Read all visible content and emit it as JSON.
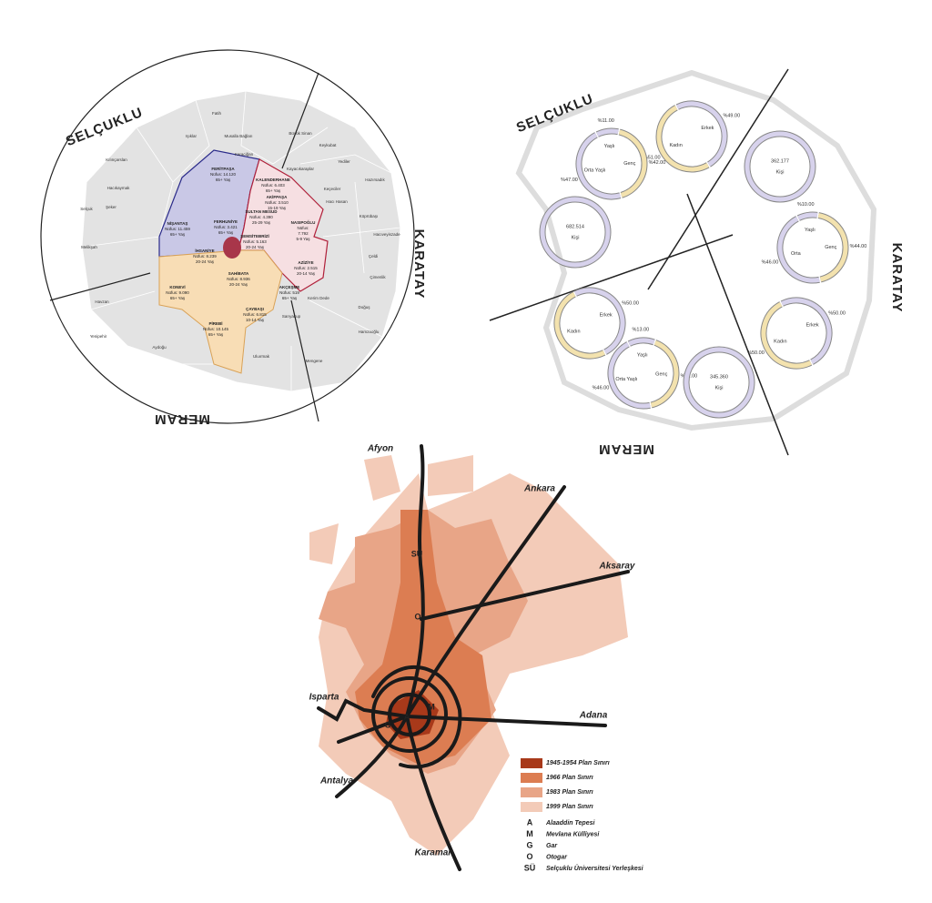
{
  "map_districts": {
    "regions": [
      "SELÇUKLU",
      "KARATAY",
      "MERAM"
    ],
    "neighborhoods": [
      "Fatih",
      "Işıklar",
      "Musalla Bağları",
      "Karaciğan",
      "Büyük Sinan",
      "Keykubat",
      "Yediler",
      "Kılınçarslan",
      "Kayacıkaraplar",
      "Hacıkaymak",
      "Keçeciler",
      "Hazırsadık",
      "Hacı Hasan",
      "Selçuk",
      "Şeker",
      "Köprübaşı",
      "Hacıveyiszade",
      "Melikşah",
      "Çeldi",
      "Çimenlik",
      "Havzan",
      "Kerim Dede",
      "Doğuş",
      "Sarıyakup",
      "Hamzaoğlu",
      "Yenipehir",
      "Aydoğu",
      "Uluırmak",
      "Mengene"
    ],
    "info_labels": [
      {
        "name": "FERİTPAŞA",
        "lines": [
          "Nüfus: 14.120",
          "65+ Yaş"
        ]
      },
      {
        "name": "KALENDERHANE",
        "lines": [
          "Nüfus: 6.403",
          "65+ Yaş"
        ]
      },
      {
        "name": "AKİFPAŞA",
        "lines": [
          "Nüfus: 3.510",
          "15-19 Yaş"
        ]
      },
      {
        "name": "SULTAN MESUD",
        "lines": [
          "Nüfus: 4.390",
          "25-29 Yaş"
        ]
      },
      {
        "name": "NASIPOĞLU",
        "lines": [
          "Nüfus:",
          "7.792",
          "5-9 Yaş"
        ]
      },
      {
        "name": "NİŞANTAŞ",
        "lines": [
          "Nüfus: 11.459",
          "65+ Yaş"
        ]
      },
      {
        "name": "FERHUNİYE",
        "lines": [
          "Nüfus: 3.421",
          "65+ Yaş"
        ]
      },
      {
        "name": "ŞEMSİTEBRİZİ",
        "lines": [
          "Nüfus: 5.163",
          "20-24 Yaş"
        ]
      },
      {
        "name": "İHSANİYE",
        "lines": [
          "Nüfus: 8.239",
          "20-24 Yaş"
        ]
      },
      {
        "name": "AZİZİYE",
        "lines": [
          "Nüfus: 2.515",
          "20-14 Yaş"
        ]
      },
      {
        "name": "SAHİBATA",
        "lines": [
          "Nüfus: 8.936",
          "20-24 Yaş"
        ]
      },
      {
        "name": "KONEVİ",
        "lines": [
          "Nüfus: 9.090",
          "65+ Yaş"
        ]
      },
      {
        "name": "AKÇEŞME",
        "lines": [
          "Nüfus: 519",
          "65+ Yaş"
        ]
      },
      {
        "name": "ÇAYBAŞI",
        "lines": [
          "Nüfus: 6.815",
          "10-14 Yaş"
        ]
      },
      {
        "name": "PİREBİ",
        "lines": [
          "Nüfus: 10.145",
          "65+ Yaş"
        ]
      }
    ]
  },
  "demographics": {
    "regions": [
      "SELÇUKLU",
      "KARATAY",
      "MERAM"
    ],
    "donuts": [
      {
        "segments": [
          {
            "name": "Erkek",
            "value": 49,
            "label": "%49.00"
          },
          {
            "name": "Kadın",
            "value": 51,
            "label": "%51.00"
          }
        ]
      },
      {
        "segments": [
          {
            "name": "Yaşlı",
            "value": 11,
            "label": "%11.00"
          },
          {
            "name": "Genç",
            "value": 42,
            "label": "%42.00"
          },
          {
            "name": "Orta Yaşlı",
            "value": 47,
            "label": "%47.00"
          }
        ]
      },
      {
        "total": "362.177",
        "unit": "Kişi"
      },
      {
        "total": "682.514",
        "unit": "Kişi"
      },
      {
        "segments": [
          {
            "name": "Yaşlı",
            "value": 10,
            "label": "%10.00"
          },
          {
            "name": "Genç",
            "value": 44,
            "label": "%44.00"
          },
          {
            "name": "Orta",
            "value": 46,
            "label": "%46.00"
          }
        ]
      },
      {
        "segments": [
          {
            "name": "Erkek",
            "value": 50,
            "label": "%50.00"
          },
          {
            "name": "Kadın",
            "value": 50
          }
        ]
      },
      {
        "segments": [
          {
            "name": "Yaşlı",
            "value": 13,
            "label": "%13.00"
          },
          {
            "name": "Genç",
            "value": 41,
            "label": "%41.00"
          },
          {
            "name": "Orta Yaşlı",
            "value": 46,
            "label": "%46.00"
          }
        ]
      },
      {
        "total": "345.360",
        "unit": "Kişi"
      },
      {
        "segments": [
          {
            "name": "Erkek",
            "value": 50,
            "label": "%50.00"
          },
          {
            "name": "Kadın",
            "value": 50,
            "label": "%50.00"
          }
        ]
      }
    ]
  },
  "plan_map": {
    "cities": [
      "Afyon",
      "Ankara",
      "Aksaray",
      "Adana",
      "Isparta",
      "Antalya",
      "Karaman"
    ],
    "points": [
      "SÜ",
      "O",
      "M",
      "G",
      "A"
    ],
    "legend": [
      {
        "label": "1945-1954 Plan Sınırı",
        "color": "#a8391a"
      },
      {
        "label": "1966 Plan Sınırı",
        "color": "#dc7d52"
      },
      {
        "label": "1983 Plan Sınırı",
        "color": "#e8a587"
      },
      {
        "label": "1999 Plan Sınırı",
        "color": "#f3cbb8"
      }
    ],
    "abbreviations": [
      {
        "key": "A",
        "label": "Alaaddin Tepesi"
      },
      {
        "key": "M",
        "label": "Mevlana Külliyesi"
      },
      {
        "key": "G",
        "label": "Gar"
      },
      {
        "key": "O",
        "label": "Otogar"
      },
      {
        "key": "SÜ",
        "label": "Selçuklu Üniversitesi Yerleşkesi"
      }
    ]
  }
}
